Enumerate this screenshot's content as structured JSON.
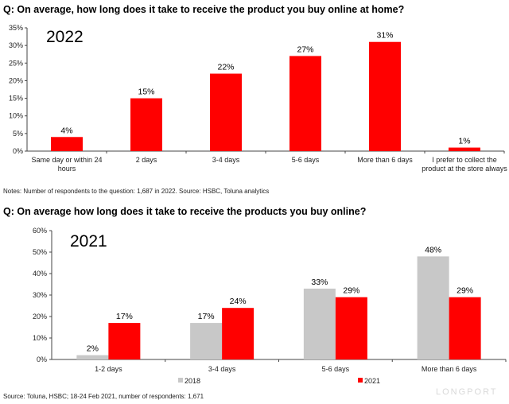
{
  "chart_data": [
    {
      "type": "bar",
      "title": "Q: On average, how long does it take to receive the product you buy online at home?",
      "annotation": "2022",
      "categories": [
        "Same day or within 24 hours",
        "2 days",
        "3-4 days",
        "5-6 days",
        "More than 6 days",
        "I prefer to collect the product at the store always"
      ],
      "series": [
        {
          "values": [
            4,
            15,
            22,
            27,
            31,
            1
          ],
          "color": "#ff0000"
        }
      ],
      "data_labels": [
        "4%",
        "15%",
        "22%",
        "27%",
        "31%",
        "1%"
      ],
      "ylim": [
        0,
        35
      ],
      "yticks": [
        "0%",
        "5%",
        "10%",
        "15%",
        "20%",
        "25%",
        "30%",
        "35%"
      ],
      "grid": false,
      "note": "Notes: Number of respondents to the question: 1,687 in 2022. Source: HSBC, Toluna analytics"
    },
    {
      "type": "bar",
      "title": "Q: On average how long does it take to receive the products you buy online?",
      "annotation": "2021",
      "categories": [
        "1-2 days",
        "3-4 days",
        "5-6 days",
        "More than 6 days"
      ],
      "series": [
        {
          "name": "2018",
          "values": [
            2,
            17,
            33,
            48
          ],
          "labels": [
            "2%",
            "17%",
            "33%",
            "48%"
          ],
          "color": "#c8c8c8"
        },
        {
          "name": "2021",
          "values": [
            17,
            24,
            29,
            29
          ],
          "labels": [
            "17%",
            "24%",
            "29%",
            "29%"
          ],
          "color": "#ff0000"
        }
      ],
      "ylim": [
        0,
        60
      ],
      "yticks": [
        "0%",
        "10%",
        "20%",
        "30%",
        "40%",
        "50%",
        "60%"
      ],
      "grid": false,
      "legend": "bottom",
      "note": "Source: Toluna, HSBC; 18-24 Feb 2021, number of respondents: 1,671"
    }
  ],
  "watermark": "LONGPORT"
}
